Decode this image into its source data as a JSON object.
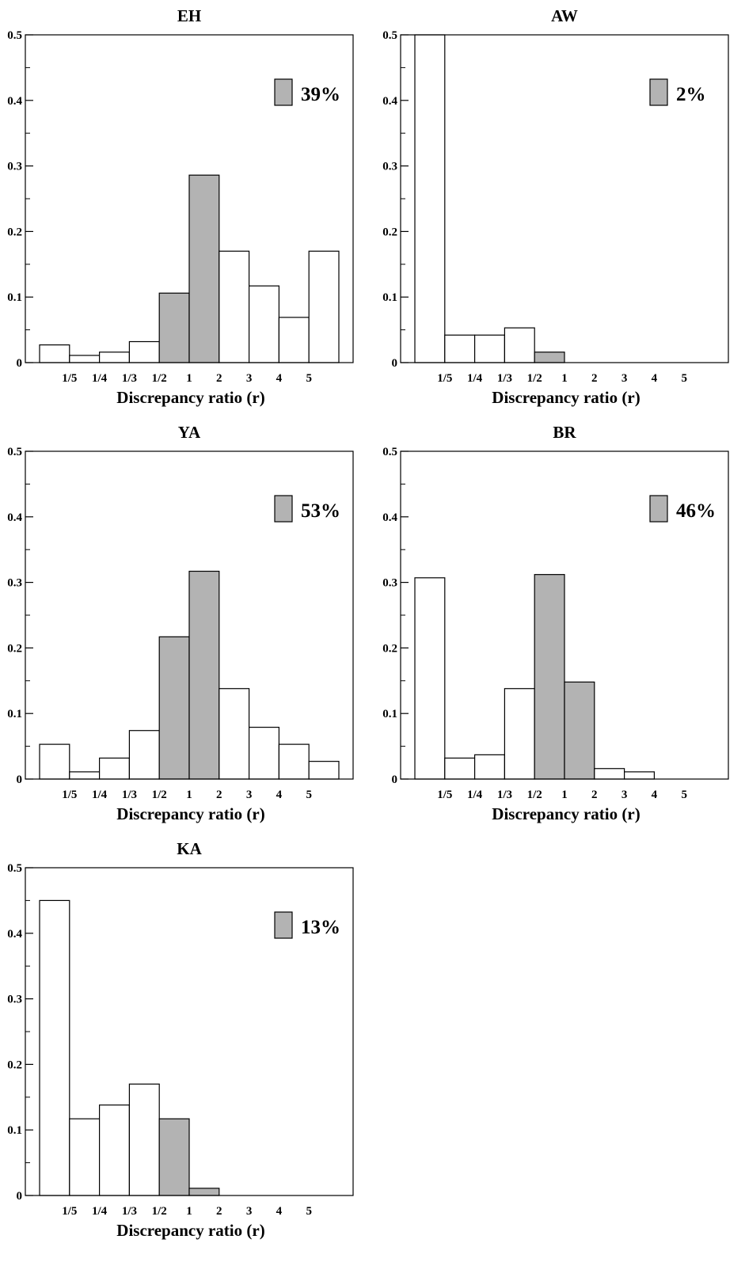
{
  "colors": {
    "highlight_fill": "#b3b3b3",
    "plain_fill": "#ffffff",
    "stroke": "#000000"
  },
  "chart_data": [
    {
      "type": "bar",
      "title": "EH",
      "xlabel": "Discrepancy ratio (r)",
      "ylabel": "",
      "ylim": [
        0,
        0.5
      ],
      "yticks": [
        0,
        0.1,
        0.2,
        0.3,
        0.4,
        0.5
      ],
      "ytick_labels": [
        "0",
        "0.1",
        "0.2",
        "0.3",
        "0.4",
        "0.5"
      ],
      "category_boundaries": [
        "1/5",
        "1/4",
        "1/3",
        "1/2",
        "1",
        "2",
        "3",
        "4",
        "5"
      ],
      "values": [
        0.027,
        0.011,
        0.016,
        0.032,
        0.106,
        0.286,
        0.17,
        0.117,
        0.069,
        0.17
      ],
      "highlighted_bins": [
        4,
        5
      ],
      "legend": {
        "label": "39%",
        "position": "top-right"
      },
      "grid": false
    },
    {
      "type": "bar",
      "title": "AW",
      "xlabel": "Discrepancy ratio (r)",
      "ylabel": "",
      "ylim": [
        0,
        0.5
      ],
      "yticks": [
        0,
        0.1,
        0.2,
        0.3,
        0.4,
        0.5
      ],
      "ytick_labels": [
        "0",
        "0.1",
        "0.2",
        "0.3",
        "0.4",
        "0.5"
      ],
      "category_boundaries": [
        "1/5",
        "1/4",
        "1/3",
        "1/2",
        "1",
        "2",
        "3",
        "4",
        "5"
      ],
      "values": [
        0.5,
        0.042,
        0.042,
        0.053,
        0.016,
        0,
        0,
        0,
        0,
        0
      ],
      "highlighted_bins": [
        4,
        5
      ],
      "legend": {
        "label": "2%",
        "position": "top-right"
      },
      "grid": false
    },
    {
      "type": "bar",
      "title": "YA",
      "xlabel": "Discrepancy ratio (r)",
      "ylabel": "",
      "ylim": [
        0,
        0.5
      ],
      "yticks": [
        0,
        0.1,
        0.2,
        0.3,
        0.4,
        0.5
      ],
      "ytick_labels": [
        "0",
        "0.1",
        "0.2",
        "0.3",
        "0.4",
        "0.5"
      ],
      "category_boundaries": [
        "1/5",
        "1/4",
        "1/3",
        "1/2",
        "1",
        "2",
        "3",
        "4",
        "5"
      ],
      "values": [
        0.053,
        0.011,
        0.032,
        0.074,
        0.217,
        0.317,
        0.138,
        0.079,
        0.053,
        0.027
      ],
      "highlighted_bins": [
        4,
        5
      ],
      "legend": {
        "label": "53%",
        "position": "top-right"
      },
      "grid": false
    },
    {
      "type": "bar",
      "title": "BR",
      "xlabel": "Discrepancy ratio (r)",
      "ylabel": "",
      "ylim": [
        0,
        0.5
      ],
      "yticks": [
        0,
        0.1,
        0.2,
        0.3,
        0.4,
        0.5
      ],
      "ytick_labels": [
        "0",
        "0.1",
        "0.2",
        "0.3",
        "0.4",
        "0.5"
      ],
      "category_boundaries": [
        "1/5",
        "1/4",
        "1/3",
        "1/2",
        "1",
        "2",
        "3",
        "4",
        "5"
      ],
      "values": [
        0.307,
        0.032,
        0.037,
        0.138,
        0.312,
        0.148,
        0.016,
        0.011,
        0,
        0
      ],
      "highlighted_bins": [
        4,
        5
      ],
      "legend": {
        "label": "46%",
        "position": "top-right"
      },
      "grid": false
    },
    {
      "type": "bar",
      "title": "KA",
      "xlabel": "Discrepancy ratio (r)",
      "ylabel": "",
      "ylim": [
        0,
        0.5
      ],
      "yticks": [
        0,
        0.1,
        0.2,
        0.3,
        0.4,
        0.5
      ],
      "ytick_labels": [
        "0",
        "0.1",
        "0.2",
        "0.3",
        "0.4",
        "0.5"
      ],
      "category_boundaries": [
        "1/5",
        "1/4",
        "1/3",
        "1/2",
        "1",
        "2",
        "3",
        "4",
        "5"
      ],
      "values": [
        0.45,
        0.117,
        0.138,
        0.17,
        0.117,
        0.011,
        0,
        0,
        0,
        0
      ],
      "highlighted_bins": [
        4,
        5
      ],
      "legend": {
        "label": "13%",
        "position": "top-right"
      },
      "grid": false
    }
  ]
}
